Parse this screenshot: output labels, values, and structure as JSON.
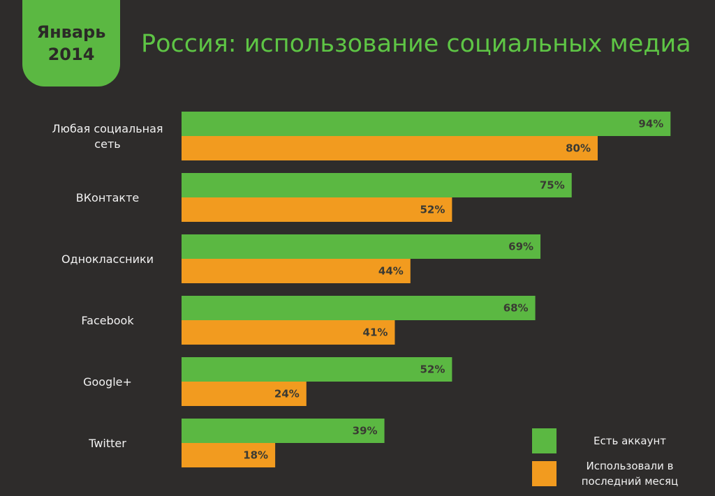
{
  "badge": {
    "line1": "Январь",
    "line2": "2014"
  },
  "title": "Россия: использование социальных медиа",
  "colors": {
    "background": "#2e2c2b",
    "account": "#5bb842",
    "last_month": "#f29b1f",
    "title": "#5ec545"
  },
  "chart_data": {
    "type": "bar",
    "orientation": "horizontal",
    "title": "Россия: использование социальных медиа",
    "categories": [
      "Любая социальная сеть",
      "ВКонтакте",
      "Одноклассники",
      "Facebook",
      "Google+",
      "Twitter"
    ],
    "series": [
      {
        "name": "Есть аккаунт",
        "color": "#5bb842",
        "values": [
          94,
          75,
          69,
          68,
          52,
          39
        ]
      },
      {
        "name": "Использовали в последний месяц",
        "color": "#f29b1f",
        "values": [
          80,
          52,
          44,
          41,
          24,
          18
        ]
      }
    ],
    "value_labels": [
      [
        "94%",
        "75%",
        "69%",
        "68%",
        "52%",
        "39%"
      ],
      [
        "80%",
        "52%",
        "44%",
        "41%",
        "24%",
        "18%"
      ]
    ],
    "xlim": [
      0,
      100
    ],
    "grid": false,
    "legend_position": "bottom-right"
  }
}
